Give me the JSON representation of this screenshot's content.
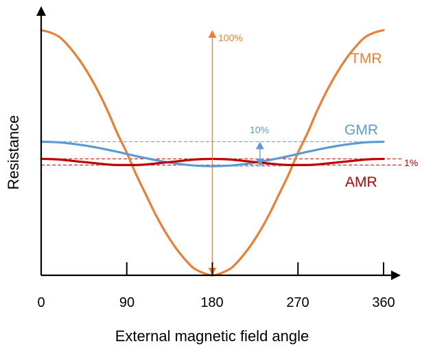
{
  "chart_data": {
    "type": "line",
    "xlabel": "External magnetic field angle",
    "ylabel": "Resistance",
    "xlim": [
      0,
      360
    ],
    "ylim": [
      0,
      100
    ],
    "x_ticks": [
      "0",
      "90",
      "180",
      "270",
      "360"
    ],
    "x_tick_values": [
      0,
      90,
      180,
      270,
      360
    ],
    "grid": false,
    "legend": "none",
    "series": [
      {
        "name": "TMR",
        "color": "#ED7D31",
        "x": [
          0,
          10,
          20,
          30,
          40,
          50,
          60,
          70,
          80,
          90,
          100,
          110,
          120,
          130,
          140,
          150,
          160,
          170,
          180,
          190,
          200,
          210,
          220,
          230,
          240,
          250,
          260,
          270,
          280,
          290,
          300,
          310,
          320,
          330,
          340,
          350,
          360
        ],
        "values": [
          100,
          99,
          97,
          93,
          88,
          82,
          75,
          67,
          58,
          50,
          41,
          33,
          25,
          18,
          12,
          7,
          3,
          1,
          0,
          1,
          3,
          7,
          12,
          18,
          25,
          33,
          41,
          50,
          58,
          67,
          75,
          82,
          88,
          93,
          97,
          99,
          100
        ]
      },
      {
        "name": "GMR",
        "color": "#5B9BD5",
        "x": [
          0,
          10,
          20,
          30,
          40,
          50,
          60,
          70,
          80,
          90,
          100,
          110,
          120,
          130,
          140,
          150,
          160,
          170,
          180,
          190,
          200,
          210,
          220,
          230,
          240,
          250,
          260,
          270,
          280,
          290,
          300,
          310,
          320,
          330,
          340,
          350,
          360
        ],
        "values": [
          54.5,
          54.4,
          54.2,
          53.8,
          53.3,
          52.7,
          52,
          51.2,
          50.4,
          49.5,
          48.6,
          47.8,
          47,
          46.3,
          45.7,
          45.2,
          44.8,
          44.6,
          44.5,
          44.6,
          44.8,
          45.2,
          45.7,
          46.3,
          47,
          47.8,
          48.6,
          49.5,
          50.4,
          51.2,
          52,
          52.7,
          53.3,
          53.8,
          54.2,
          54.4,
          54.5
        ]
      },
      {
        "name": "AMR",
        "color": "#C00000",
        "x": [
          0,
          10,
          20,
          30,
          40,
          50,
          60,
          70,
          80,
          90,
          100,
          110,
          120,
          130,
          140,
          150,
          160,
          170,
          180,
          190,
          200,
          210,
          220,
          230,
          240,
          250,
          260,
          270,
          280,
          290,
          300,
          310,
          320,
          330,
          340,
          350,
          360
        ],
        "values": [
          47.5,
          47.4,
          47.2,
          46.8,
          46.4,
          46,
          45.6,
          45.2,
          45,
          45,
          45,
          45.2,
          45.6,
          46,
          46.4,
          46.8,
          47.2,
          47.4,
          47.5,
          47.4,
          47.2,
          46.8,
          46.4,
          46,
          45.6,
          45.2,
          45,
          45,
          45,
          45.2,
          45.6,
          46,
          46.4,
          46.8,
          47.2,
          47.4,
          47.5
        ]
      }
    ],
    "annotations": [
      {
        "text": "100%",
        "color": "#ED7D31",
        "x": 180,
        "range": [
          0,
          100
        ]
      },
      {
        "text": "10%",
        "color": "#5B9BD5",
        "x": 230,
        "range": [
          44.5,
          54.5
        ]
      },
      {
        "text": "1%",
        "color": "#C00000",
        "range": [
          45,
          47.5
        ]
      }
    ]
  }
}
